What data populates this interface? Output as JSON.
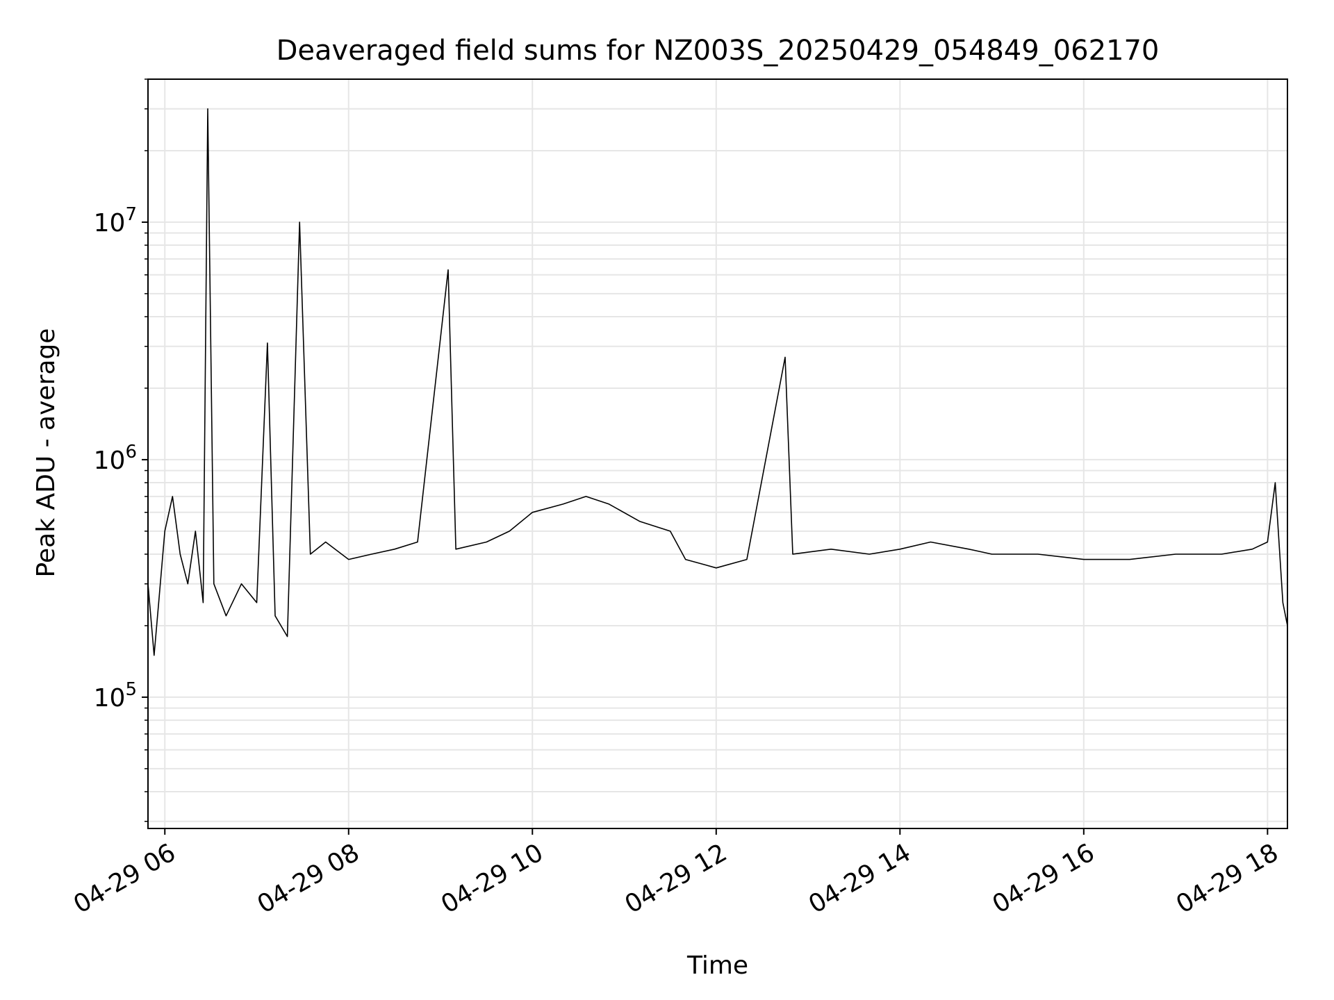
{
  "chart_data": {
    "type": "line",
    "title": "Deaveraged field sums for NZ003S_20250429_054849_062170",
    "xlabel": "Time",
    "ylabel": "Peak ADU - average",
    "x_range": [
      "2025-04-29 05:49",
      "2025-04-29 18:13"
    ],
    "ylim": [
      28000,
      40000000
    ],
    "y_scale": "log",
    "grid": true,
    "line_color": "#000000",
    "x_ticks": [
      {
        "value": "2025-04-29 06:00",
        "label": "04-29 06"
      },
      {
        "value": "2025-04-29 08:00",
        "label": "04-29 08"
      },
      {
        "value": "2025-04-29 10:00",
        "label": "04-29 10"
      },
      {
        "value": "2025-04-29 12:00",
        "label": "04-29 12"
      },
      {
        "value": "2025-04-29 14:00",
        "label": "04-29 14"
      },
      {
        "value": "2025-04-29 16:00",
        "label": "04-29 16"
      },
      {
        "value": "2025-04-29 18:00",
        "label": "04-29 18"
      }
    ],
    "y_ticks": [
      {
        "value": 100000,
        "base": "10",
        "exp": "5"
      },
      {
        "value": 1000000,
        "base": "10",
        "exp": "6"
      },
      {
        "value": 10000000,
        "base": "10",
        "exp": "7"
      }
    ],
    "series": [
      {
        "points": [
          [
            "2025-04-29 05:49",
            300000
          ],
          [
            "2025-04-29 05:53",
            150000
          ],
          [
            "2025-04-29 05:56",
            250000
          ],
          [
            "2025-04-29 06:00",
            500000
          ],
          [
            "2025-04-29 06:05",
            700000
          ],
          [
            "2025-04-29 06:10",
            400000
          ],
          [
            "2025-04-29 06:15",
            300000
          ],
          [
            "2025-04-29 06:20",
            500000
          ],
          [
            "2025-04-29 06:25",
            250000
          ],
          [
            "2025-04-29 06:28",
            30000000
          ],
          [
            "2025-04-29 06:32",
            300000
          ],
          [
            "2025-04-29 06:40",
            220000
          ],
          [
            "2025-04-29 06:50",
            300000
          ],
          [
            "2025-04-29 07:00",
            250000
          ],
          [
            "2025-04-29 07:07",
            3100000
          ],
          [
            "2025-04-29 07:12",
            220000
          ],
          [
            "2025-04-29 07:20",
            180000
          ],
          [
            "2025-04-29 07:28",
            10000000
          ],
          [
            "2025-04-29 07:35",
            400000
          ],
          [
            "2025-04-29 07:45",
            450000
          ],
          [
            "2025-04-29 08:00",
            380000
          ],
          [
            "2025-04-29 08:15",
            400000
          ],
          [
            "2025-04-29 08:30",
            420000
          ],
          [
            "2025-04-29 08:45",
            450000
          ],
          [
            "2025-04-29 09:05",
            6300000
          ],
          [
            "2025-04-29 09:10",
            420000
          ],
          [
            "2025-04-29 09:30",
            450000
          ],
          [
            "2025-04-29 09:45",
            500000
          ],
          [
            "2025-04-29 10:00",
            600000
          ],
          [
            "2025-04-29 10:20",
            650000
          ],
          [
            "2025-04-29 10:35",
            700000
          ],
          [
            "2025-04-29 10:50",
            650000
          ],
          [
            "2025-04-29 11:10",
            550000
          ],
          [
            "2025-04-29 11:30",
            500000
          ],
          [
            "2025-04-29 11:40",
            380000
          ],
          [
            "2025-04-29 12:00",
            350000
          ],
          [
            "2025-04-29 12:20",
            380000
          ],
          [
            "2025-04-29 12:45",
            2700000
          ],
          [
            "2025-04-29 12:50",
            400000
          ],
          [
            "2025-04-29 13:15",
            420000
          ],
          [
            "2025-04-29 13:40",
            400000
          ],
          [
            "2025-04-29 14:00",
            420000
          ],
          [
            "2025-04-29 14:20",
            450000
          ],
          [
            "2025-04-29 14:45",
            420000
          ],
          [
            "2025-04-29 15:00",
            400000
          ],
          [
            "2025-04-29 15:30",
            400000
          ],
          [
            "2025-04-29 16:00",
            380000
          ],
          [
            "2025-04-29 16:30",
            380000
          ],
          [
            "2025-04-29 17:00",
            400000
          ],
          [
            "2025-04-29 17:30",
            400000
          ],
          [
            "2025-04-29 17:50",
            420000
          ],
          [
            "2025-04-29 18:00",
            450000
          ],
          [
            "2025-04-29 18:05",
            800000
          ],
          [
            "2025-04-29 18:10",
            250000
          ],
          [
            "2025-04-29 18:13",
            200000
          ]
        ]
      }
    ]
  }
}
